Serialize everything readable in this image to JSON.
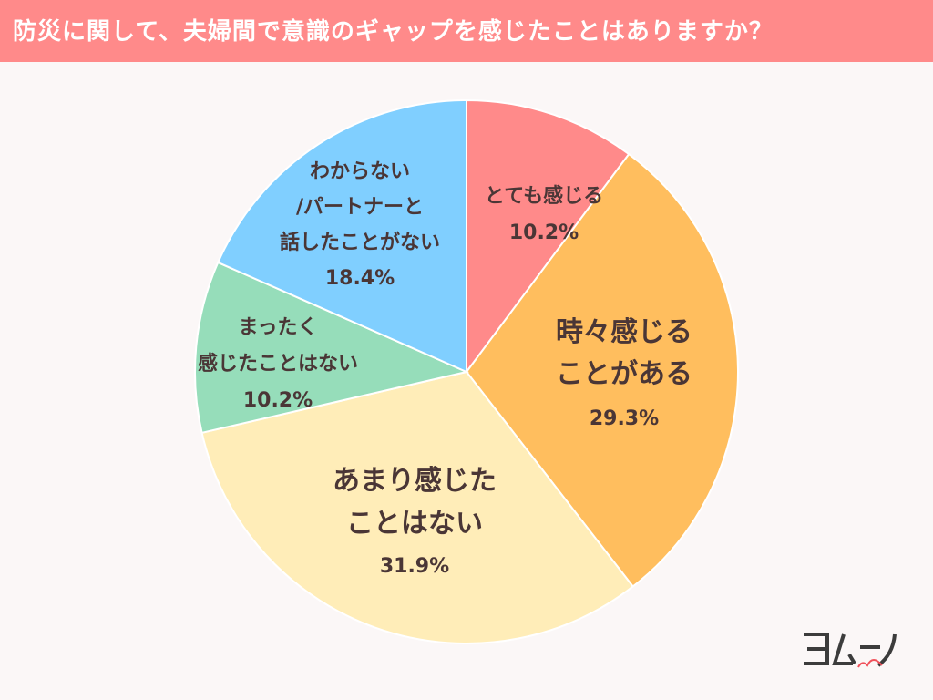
{
  "header": {
    "title": "防災に関して、夫婦間で意識のギャップを感じたことはありますか？"
  },
  "logo": {
    "text": "ヨムーノ"
  },
  "chart_data": {
    "type": "pie",
    "title": "防災に関して、夫婦間で意識のギャップを感じたことはありますか？",
    "start": "top",
    "direction": "clockwise",
    "slices": [
      {
        "label_lines": [
          "とても感じる"
        ],
        "value": 10.2,
        "pct_text": "10.2%",
        "color": "#FF8A8A"
      },
      {
        "label_lines": [
          "時々感じる",
          "ことがある"
        ],
        "value": 29.3,
        "pct_text": "29.3%",
        "color": "#FFBE5E"
      },
      {
        "label_lines": [
          "あまり感じた",
          "ことはない"
        ],
        "value": 31.9,
        "pct_text": "31.9%",
        "color": "#FFEDB8"
      },
      {
        "label_lines": [
          "まったく",
          "感じたことはない"
        ],
        "value": 10.2,
        "pct_text": "10.2%",
        "color": "#96DDBA"
      },
      {
        "label_lines": [
          "わからない",
          "/パートナーと",
          "話したことがない"
        ],
        "value": 18.4,
        "pct_text": "18.4%",
        "color": "#80CFFF"
      }
    ]
  }
}
